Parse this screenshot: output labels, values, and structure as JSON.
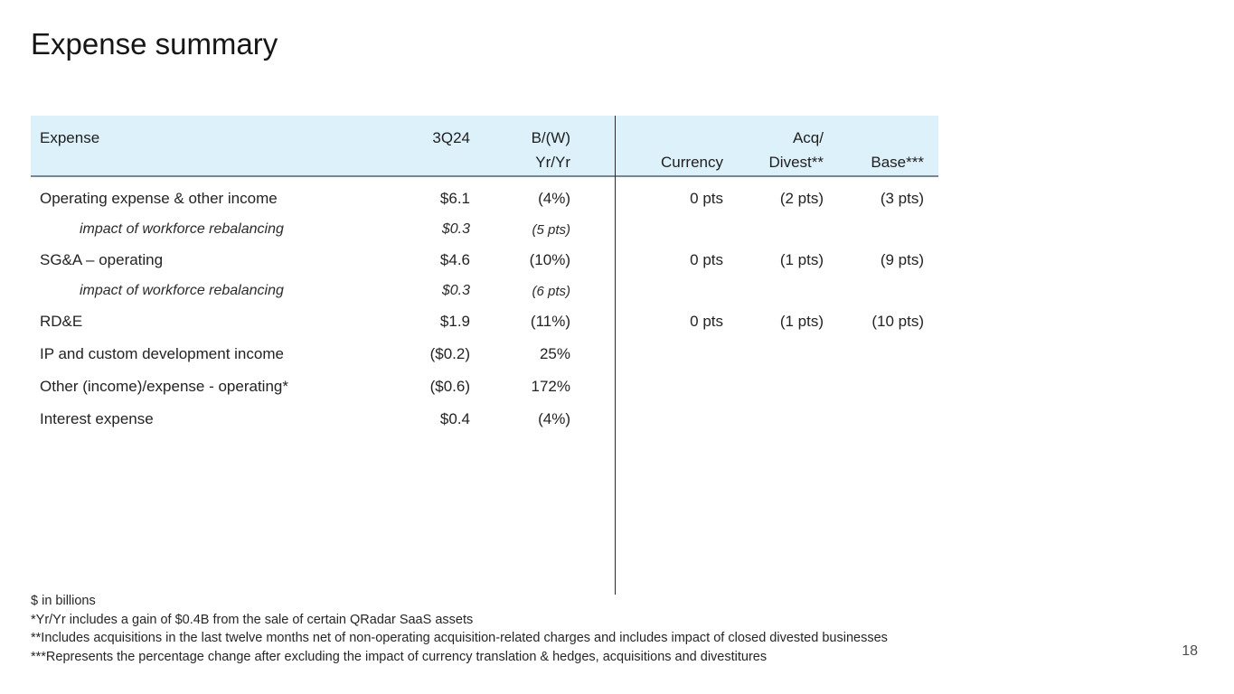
{
  "slide": {
    "title": "Expense summary",
    "page_number": "18"
  },
  "table": {
    "headers": {
      "expense": "Expense",
      "quarter": "3Q24",
      "bw_line1": "B/(W)",
      "bw_line2": "Yr/Yr",
      "currency": "Currency",
      "acq_line1": "Acq/",
      "acq_line2": "Divest**",
      "base": "Base***"
    },
    "rows": [
      {
        "label": "Operating expense & other income",
        "quarter": "$6.1",
        "bw": "(4%)",
        "currency": "0 pts",
        "acq": "(2 pts)",
        "base": "(3 pts)",
        "sub": false
      },
      {
        "label": "impact of workforce rebalancing",
        "quarter": "$0.3",
        "bw": "(5 pts)",
        "currency": "",
        "acq": "",
        "base": "",
        "sub": true
      },
      {
        "label": "SG&A – operating",
        "quarter": "$4.6",
        "bw": "(10%)",
        "currency": "0 pts",
        "acq": "(1 pts)",
        "base": "(9 pts)",
        "sub": false
      },
      {
        "label": "impact of workforce rebalancing",
        "quarter": "$0.3",
        "bw": "(6 pts)",
        "currency": "",
        "acq": "",
        "base": "",
        "sub": true
      },
      {
        "label": "RD&E",
        "quarter": "$1.9",
        "bw": "(11%)",
        "currency": "0 pts",
        "acq": "(1 pts)",
        "base": "(10 pts)",
        "sub": false
      },
      {
        "label": "IP and custom development income",
        "quarter": "($0.2)",
        "bw": "25%",
        "currency": "",
        "acq": "",
        "base": "",
        "sub": false
      },
      {
        "label": "Other (income)/expense - operating*",
        "quarter": "($0.6)",
        "bw": "172%",
        "currency": "",
        "acq": "",
        "base": "",
        "sub": false
      },
      {
        "label": "Interest expense",
        "quarter": "$0.4",
        "bw": "(4%)",
        "currency": "",
        "acq": "",
        "base": "",
        "sub": false
      }
    ]
  },
  "footnotes": [
    "$ in billions",
    "*Yr/Yr includes a gain of $0.4B from the sale of certain QRadar SaaS assets",
    "**Includes acquisitions in the last twelve months net of non-operating acquisition-related charges and includes impact of closed divested businesses",
    "***Represents the percentage change after excluding the impact of currency translation & hedges, acquisitions and divestitures"
  ],
  "colors": {
    "header_bg": "#ddf1fb",
    "header_rule": "#768692",
    "divider": "#2b2b2b",
    "text": "#222222"
  }
}
